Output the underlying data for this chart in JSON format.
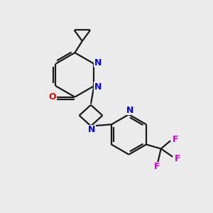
{
  "background_color": "#ebebeb",
  "bond_color": "#1a1a1a",
  "N_color": "#0000dd",
  "O_color": "#dd0000",
  "F_color": "#cc00cc",
  "line_width": 1.6,
  "figsize": [
    3.0,
    3.0
  ],
  "dpi": 100,
  "xlim": [
    0,
    10
  ],
  "ylim": [
    0,
    10
  ]
}
